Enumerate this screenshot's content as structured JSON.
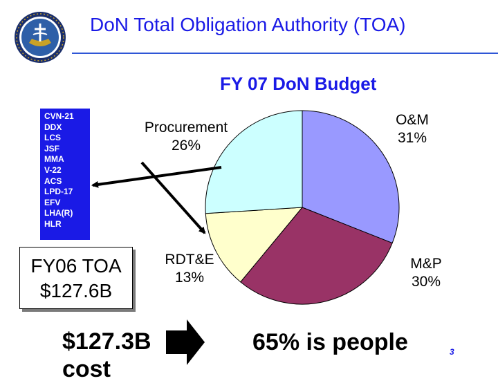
{
  "slide": {
    "title": "DoN Total Obligation Authority (TOA)",
    "subtitle": "FY 07 DoN Budget",
    "page_number": "3"
  },
  "programs": [
    "CVN-21",
    "DDX",
    "LCS",
    "JSF",
    "MMA",
    "V-22",
    "ACS",
    "LPD-17",
    "EFV",
    "LHA(R)",
    "HLR"
  ],
  "toa_box": {
    "line1": "FY06 TOA",
    "line2": "$127.6B"
  },
  "bottom": {
    "left_line1": "$127.3B",
    "left_line2": "cost",
    "right_text": "65% is people"
  },
  "chart_data": {
    "type": "pie",
    "title": "FY 07 DoN Budget",
    "slices": [
      {
        "name": "O&M",
        "label": "O&M",
        "pct_label": "31%",
        "value": 31,
        "color": "#9999ff"
      },
      {
        "name": "M&P",
        "label": "M&P",
        "pct_label": "30%",
        "value": 30,
        "color": "#993366"
      },
      {
        "name": "RDT&E",
        "label": "RDT&E",
        "pct_label": "13%",
        "value": 13,
        "color": "#ffffcc"
      },
      {
        "name": "Procurement",
        "label": "Procurement",
        "pct_label": "26%",
        "value": 26,
        "color": "#ccffff"
      }
    ]
  },
  "colors": {
    "title_blue": "#1a1ae6",
    "arrow": "#000000"
  }
}
